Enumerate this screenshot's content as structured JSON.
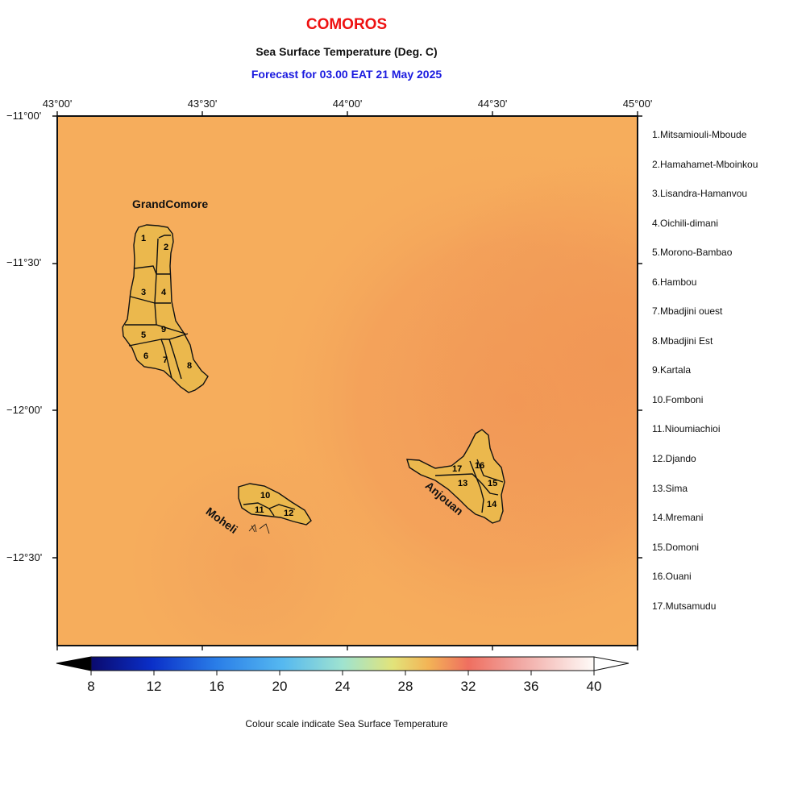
{
  "header": {
    "country": "COMOROS",
    "subtitle": "Sea Surface Temperature (Deg. C)",
    "forecast": "Forecast for  03.00 EAT 21 May 2025"
  },
  "axes": {
    "lon_labels": [
      "43°00'",
      "43°30'",
      "44°00'",
      "44°30'",
      "45°00'"
    ],
    "lat_labels": [
      "−11°00'",
      "−11°30'",
      "−12°00'",
      "−12°30'"
    ]
  },
  "islands": {
    "grand_comore": "GrandComore",
    "moheli": "Moheli",
    "anjouan": "Anjouan"
  },
  "region_numbers": [
    "1",
    "2",
    "3",
    "4",
    "5",
    "6",
    "7",
    "8",
    "9",
    "10",
    "11",
    "12",
    "13",
    "14",
    "15",
    "16",
    "17"
  ],
  "legend": [
    "1.Mitsamiouli-Mboude",
    "2.Hamahamet-Mboinkou",
    "3.Lisandra-Hamanvou",
    "4.Oichili-dimani",
    "5.Morono-Bambao",
    "6.Hambou",
    "7.Mbadjini ouest",
    "8.Mbadjini Est",
    "9.Kartala",
    "10.Fomboni",
    "11.Nioumiachioi",
    "12.Djando",
    "13.Sima",
    "14.Mremani",
    "15.Domoni",
    "16.Ouani",
    "17.Mutsamudu"
  ],
  "colorbar": {
    "ticks": [
      "8",
      "12",
      "16",
      "20",
      "24",
      "28",
      "32",
      "36",
      "40"
    ],
    "caption": "Colour scale indicate Sea Surface Temperature"
  },
  "colors": {
    "sea_base": "#f6ad5c",
    "sea_warm": "#f29a58",
    "island_fill": "#ebb84d",
    "title_red": "#ee1111",
    "forecast_blue": "#1a1adf"
  }
}
